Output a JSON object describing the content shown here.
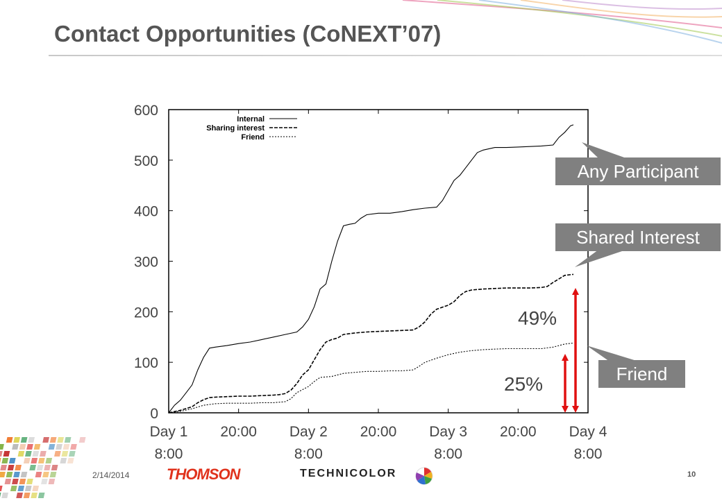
{
  "slide": {
    "title": "Contact Opportunities (CoNEXT’07)",
    "footer_date": "2/14/2014",
    "page_number": "10",
    "logo_thomson": "THOMSON",
    "logo_technicolor": "TECHNICOLOR"
  },
  "colors": {
    "accent_arrow": "#e01010",
    "callout_bg": "#808080",
    "thomson_red": "#e0321c"
  },
  "chart_data": {
    "type": "line",
    "ylim": [
      0,
      600
    ],
    "yticks": [
      "0",
      "100",
      "200",
      "300",
      "400",
      "500",
      "600"
    ],
    "xlim": [
      0,
      72
    ],
    "xticks": [
      {
        "at": 0,
        "line1": "Day 1",
        "line2": "8:00"
      },
      {
        "at": 12,
        "line1": "20:00",
        "line2": ""
      },
      {
        "at": 24,
        "line1": "Day 2",
        "line2": "8:00"
      },
      {
        "at": 36,
        "line1": "20:00",
        "line2": ""
      },
      {
        "at": 48,
        "line1": "Day 3",
        "line2": "8:00"
      },
      {
        "at": 60,
        "line1": "20:00",
        "line2": ""
      },
      {
        "at": 72,
        "line1": "Day 4",
        "line2": "8:00"
      }
    ],
    "legend_position": "top-left",
    "series": [
      {
        "name": "Internal",
        "style": "solid",
        "points": [
          [
            0,
            0
          ],
          [
            1,
            15
          ],
          [
            2,
            25
          ],
          [
            3,
            40
          ],
          [
            4,
            55
          ],
          [
            5,
            85
          ],
          [
            6,
            110
          ],
          [
            7,
            128
          ],
          [
            8,
            130
          ],
          [
            10,
            133
          ],
          [
            12,
            137
          ],
          [
            14,
            140
          ],
          [
            16,
            145
          ],
          [
            18,
            150
          ],
          [
            20,
            155
          ],
          [
            22,
            160
          ],
          [
            23,
            170
          ],
          [
            24,
            185
          ],
          [
            25,
            210
          ],
          [
            26,
            245
          ],
          [
            27,
            255
          ],
          [
            28,
            300
          ],
          [
            29,
            340
          ],
          [
            30,
            370
          ],
          [
            31,
            373
          ],
          [
            32,
            375
          ],
          [
            33,
            385
          ],
          [
            34,
            392
          ],
          [
            36,
            395
          ],
          [
            38,
            395
          ],
          [
            40,
            398
          ],
          [
            42,
            402
          ],
          [
            44,
            405
          ],
          [
            46,
            407
          ],
          [
            47,
            420
          ],
          [
            48,
            440
          ],
          [
            49,
            460
          ],
          [
            50,
            470
          ],
          [
            51,
            485
          ],
          [
            52,
            500
          ],
          [
            53,
            515
          ],
          [
            54,
            520
          ],
          [
            56,
            525
          ],
          [
            58,
            525
          ],
          [
            60,
            526
          ],
          [
            62,
            527
          ],
          [
            64,
            528
          ],
          [
            66,
            530
          ],
          [
            67,
            545
          ],
          [
            68,
            555
          ],
          [
            69,
            568
          ],
          [
            69.5,
            570
          ]
        ]
      },
      {
        "name": "Sharing interest",
        "style": "dashed",
        "points": [
          [
            0,
            0
          ],
          [
            2,
            5
          ],
          [
            4,
            12
          ],
          [
            5,
            20
          ],
          [
            6,
            26
          ],
          [
            7,
            30
          ],
          [
            8,
            31
          ],
          [
            10,
            32
          ],
          [
            12,
            33
          ],
          [
            14,
            33
          ],
          [
            16,
            34
          ],
          [
            18,
            35
          ],
          [
            19,
            36
          ],
          [
            20,
            38
          ],
          [
            21,
            45
          ],
          [
            22,
            58
          ],
          [
            23,
            75
          ],
          [
            24,
            85
          ],
          [
            25,
            105
          ],
          [
            26,
            125
          ],
          [
            27,
            140
          ],
          [
            28,
            145
          ],
          [
            29,
            148
          ],
          [
            30,
            155
          ],
          [
            32,
            158
          ],
          [
            34,
            160
          ],
          [
            36,
            161
          ],
          [
            38,
            162
          ],
          [
            40,
            163
          ],
          [
            42,
            164
          ],
          [
            43,
            170
          ],
          [
            44,
            180
          ],
          [
            45,
            195
          ],
          [
            46,
            205
          ],
          [
            48,
            213
          ],
          [
            49,
            220
          ],
          [
            50,
            232
          ],
          [
            51,
            240
          ],
          [
            52,
            243
          ],
          [
            54,
            245
          ],
          [
            56,
            246
          ],
          [
            58,
            247
          ],
          [
            60,
            247
          ],
          [
            62,
            247
          ],
          [
            64,
            248
          ],
          [
            65,
            250
          ],
          [
            66,
            258
          ],
          [
            67,
            265
          ],
          [
            68,
            272
          ],
          [
            69.5,
            274
          ]
        ]
      },
      {
        "name": "Friend",
        "style": "dotted",
        "points": [
          [
            0,
            0
          ],
          [
            2,
            3
          ],
          [
            4,
            8
          ],
          [
            6,
            15
          ],
          [
            8,
            18
          ],
          [
            10,
            19
          ],
          [
            12,
            19
          ],
          [
            14,
            19
          ],
          [
            16,
            20
          ],
          [
            18,
            20
          ],
          [
            20,
            22
          ],
          [
            21,
            28
          ],
          [
            22,
            40
          ],
          [
            24,
            52
          ],
          [
            25,
            62
          ],
          [
            26,
            70
          ],
          [
            28,
            72
          ],
          [
            30,
            78
          ],
          [
            32,
            80
          ],
          [
            34,
            82
          ],
          [
            36,
            82
          ],
          [
            38,
            83
          ],
          [
            40,
            83
          ],
          [
            42,
            85
          ],
          [
            43,
            92
          ],
          [
            44,
            100
          ],
          [
            46,
            108
          ],
          [
            48,
            115
          ],
          [
            50,
            120
          ],
          [
            52,
            123
          ],
          [
            54,
            125
          ],
          [
            56,
            126
          ],
          [
            58,
            127
          ],
          [
            60,
            127
          ],
          [
            62,
            127
          ],
          [
            64,
            127
          ],
          [
            66,
            130
          ],
          [
            67,
            133
          ],
          [
            68,
            136
          ],
          [
            69.5,
            138
          ]
        ]
      }
    ]
  },
  "annotations": {
    "callout_any": "Any Participant",
    "callout_shared": "Shared Interest",
    "callout_friend": "Friend",
    "pct_shared": "49%",
    "pct_friend": "25%"
  }
}
